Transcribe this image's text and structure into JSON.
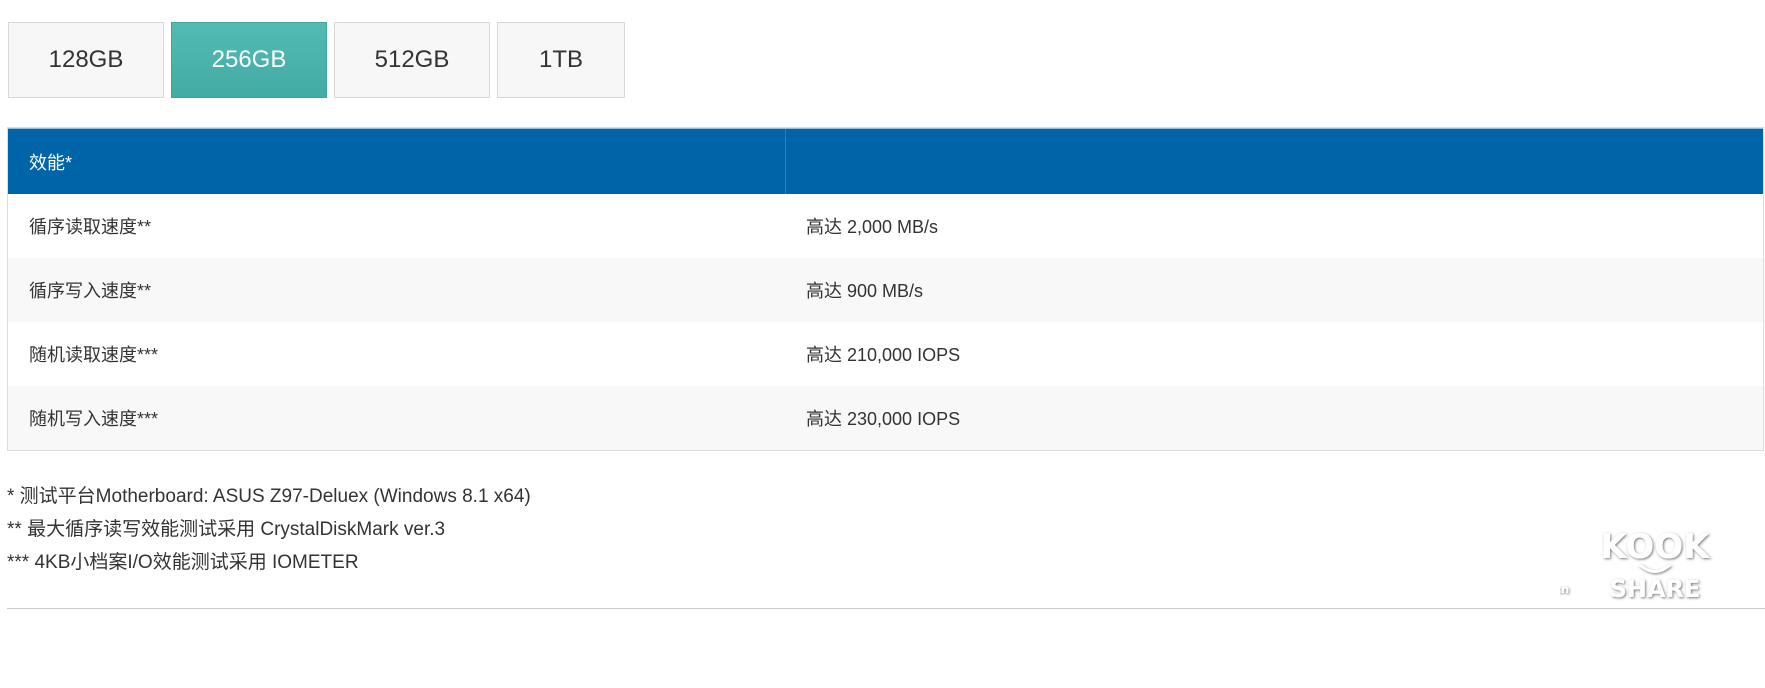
{
  "capacity_tabs": [
    {
      "label": "128GB",
      "active": false
    },
    {
      "label": "256GB",
      "active": true
    },
    {
      "label": "512GB",
      "active": false
    },
    {
      "label": "1TB",
      "active": false
    }
  ],
  "table": {
    "header": [
      "效能*",
      ""
    ],
    "rows": [
      [
        "循序读取速度**",
        "高达 2,000 MB/s"
      ],
      [
        "循序写入速度**",
        "高达 900 MB/s"
      ],
      [
        "随机读取速度***",
        "高达 210,000 IOPS"
      ],
      [
        "随机写入速度***",
        "高达 230,000 IOPS"
      ]
    ]
  },
  "footnotes": [
    "* 测试平台Motherboard: ASUS Z97-Deluex (Windows 8.1 x64)",
    "** 最大循序读写效能测试采用 CrystalDiskMark ver.3",
    "*** 4KB小档案I/O效能测试采用 IOMETER"
  ],
  "watermark": {
    "text": "koolshare.cn",
    "logo_top": "KOOL",
    "logo_bottom": "SHARE"
  },
  "colors": {
    "accent_tab": "#4bb5ad",
    "header_bg": "#0065a8"
  }
}
